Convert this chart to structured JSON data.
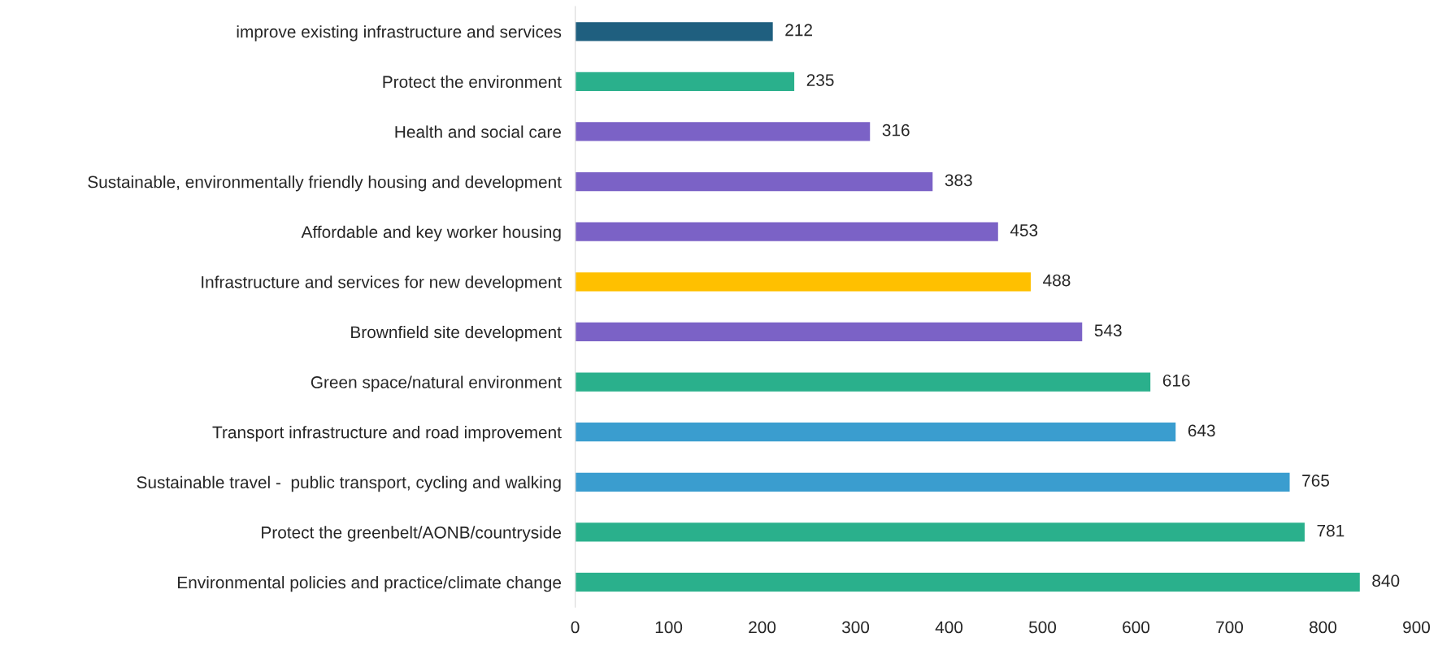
{
  "chart_data": {
    "type": "bar",
    "orientation": "horizontal",
    "categories": [
      "improve existing infrastructure and services",
      "Protect the environment",
      "Health and social care",
      "Sustainable, environmentally friendly housing and development",
      "Affordable and key worker housing",
      "Infrastructure and services for new development",
      "Brownfield site development",
      "Green space/natural environment",
      "Transport infrastructure and road improvement",
      "Sustainable travel -  public transport, cycling and walking",
      "Protect the greenbelt/AONB/countryside",
      "Environmental policies and practice/climate change"
    ],
    "values": [
      212,
      235,
      316,
      383,
      453,
      488,
      543,
      616,
      643,
      765,
      781,
      840
    ],
    "colors": [
      "#1f5f7f",
      "#2ab08c",
      "#7b62c6",
      "#7b62c6",
      "#7b62c6",
      "#ffc000",
      "#7b62c6",
      "#2ab08c",
      "#3a9dcf",
      "#3a9dcf",
      "#2ab08c",
      "#2ab08c"
    ],
    "xlim": [
      0,
      900
    ],
    "xticks": [
      0,
      100,
      200,
      300,
      400,
      500,
      600,
      700,
      800,
      900
    ],
    "data_labels": true,
    "grid": false,
    "legend": false
  }
}
